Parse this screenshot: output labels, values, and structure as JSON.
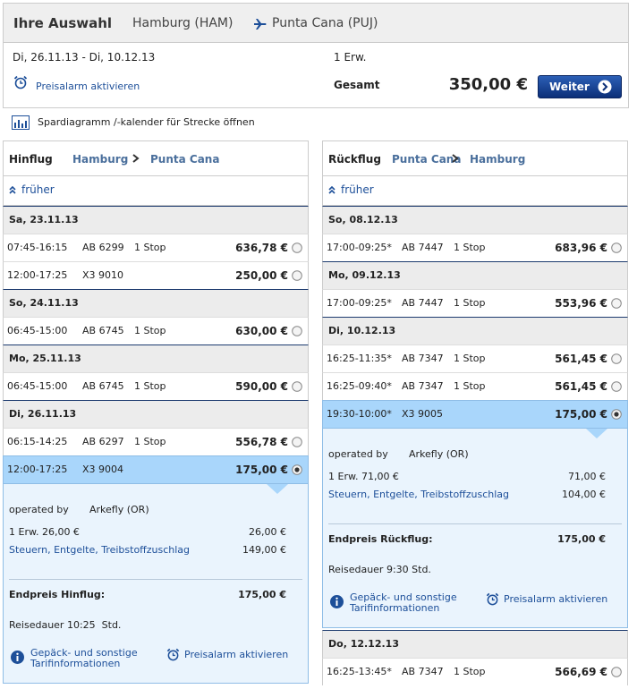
{
  "header": {
    "title": "Ihre Auswahl",
    "origin": "Hamburg (HAM)",
    "destination": "Punta Cana (PUJ)",
    "dates": "Di, 26.11.13 - Di, 10.12.13",
    "passengers": "1 Erw.",
    "alarm": "Preisalarm aktivieren",
    "total_label": "Gesamt",
    "total": "350,00 €",
    "button": "Weiter"
  },
  "spar": "Spardiagramm /-kalender für Strecke öffnen",
  "outbound": {
    "title": "Hinflug",
    "from": "Hamburg",
    "to": "Punta Cana",
    "earlier": "früher",
    "days": [
      {
        "date": "Sa, 23.11.13",
        "flights": [
          {
            "time": "07:45-16:15",
            "flight": "AB 6299",
            "stops": "1 Stop",
            "price": "636,78 €"
          },
          {
            "time": "12:00-17:25",
            "flight": "X3 9010",
            "stops": "",
            "price": "250,00 €"
          }
        ]
      },
      {
        "date": "So, 24.11.13",
        "flights": [
          {
            "time": "06:45-15:00",
            "flight": "AB 6745",
            "stops": "1 Stop",
            "price": "630,00 €"
          }
        ]
      },
      {
        "date": "Mo, 25.11.13",
        "flights": [
          {
            "time": "06:45-15:00",
            "flight": "AB 6745",
            "stops": "1 Stop",
            "price": "590,00 €"
          }
        ]
      },
      {
        "date": "Di, 26.11.13",
        "flights": [
          {
            "time": "06:15-14:25",
            "flight": "AB 6297",
            "stops": "1 Stop",
            "price": "556,78 €"
          },
          {
            "time": "12:00-17:25",
            "flight": "X3 9004",
            "stops": "",
            "price": "175,00 €",
            "selected": true,
            "details": {
              "operated_label": "operated by",
              "operator": "Arkefly (OR)",
              "fare_label": "1 Erw. 26,00 €",
              "fare": "26,00 €",
              "taxes_label": "Steuern, Entgelte, Treibstoffzuschlag",
              "taxes": "149,00 €",
              "final_label": "Endpreis Hinflug:",
              "final": "175,00 €",
              "duration": "Reisedauer 10:25  Std.",
              "baggage": "Gepäck- und sonstige Tarifinformationen",
              "alarm": "Preisalarm aktivieren"
            }
          }
        ]
      }
    ]
  },
  "return": {
    "title": "Rückflug",
    "from": "Punta Cana",
    "to": "Hamburg",
    "earlier": "früher",
    "days": [
      {
        "date": "So, 08.12.13",
        "flights": [
          {
            "time": "17:00-09:25*",
            "flight": "AB 7447",
            "stops": "1 Stop",
            "price": "683,96 €"
          }
        ]
      },
      {
        "date": "Mo, 09.12.13",
        "flights": [
          {
            "time": "17:00-09:25*",
            "flight": "AB 7447",
            "stops": "1 Stop",
            "price": "553,96 €"
          }
        ]
      },
      {
        "date": "Di, 10.12.13",
        "flights": [
          {
            "time": "16:25-11:35*",
            "flight": "AB 7347",
            "stops": "1 Stop",
            "price": "561,45 €"
          },
          {
            "time": "16:25-09:40*",
            "flight": "AB 7347",
            "stops": "1 Stop",
            "price": "561,45 €"
          },
          {
            "time": "19:30-10:00*",
            "flight": "X3 9005",
            "stops": "",
            "price": "175,00 €",
            "selected": true,
            "details": {
              "operated_label": "operated by",
              "operator": "Arkefly (OR)",
              "fare_label": "1 Erw. 71,00 €",
              "fare": "71,00 €",
              "taxes_label": "Steuern, Entgelte, Treibstoffzuschlag",
              "taxes": "104,00 €",
              "final_label": "Endpreis Rückflug:",
              "final": "175,00 €",
              "duration": "Reisedauer 9:30 Std.",
              "baggage": "Gepäck- und sonstige Tarifinformationen",
              "alarm": "Preisalarm aktivieren"
            }
          }
        ]
      },
      {
        "date": "Do, 12.12.13",
        "flights": [
          {
            "time": "16:25-13:45*",
            "flight": "AB 7347",
            "stops": "1 Stop",
            "price": "566,69 €"
          }
        ]
      }
    ]
  }
}
